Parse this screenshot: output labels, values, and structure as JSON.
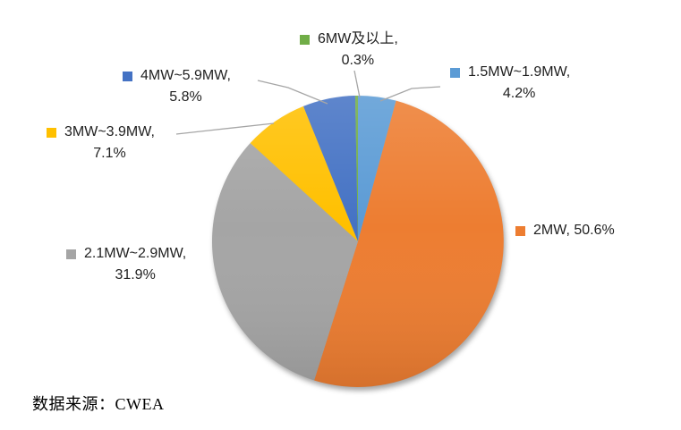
{
  "source_note": "数据来源：CWEA",
  "chart_data": {
    "type": "pie",
    "title": "",
    "start_angle_deg": 0,
    "direction": "clockwise",
    "legend_position": "data-labels-with-keys",
    "leader_line_color": "#A6A6A6",
    "slices": [
      {
        "label": "1.5MW~1.9MW",
        "value": 4.2,
        "color": "#5B9BD5",
        "label_line1": "1.5MW~1.9MW,",
        "label_line2": "4.2%"
      },
      {
        "label": "2MW",
        "value": 50.6,
        "color": "#ED7D31",
        "label_line1": "2MW, 50.6%",
        "label_line2": ""
      },
      {
        "label": "2.1MW~2.9MW",
        "value": 31.9,
        "color": "#A5A5A5",
        "label_line1": "2.1MW~2.9MW,",
        "label_line2": "31.9%"
      },
      {
        "label": "3MW~3.9MW",
        "value": 7.1,
        "color": "#FFC000",
        "label_line1": "3MW~3.9MW,",
        "label_line2": "7.1%"
      },
      {
        "label": "4MW~5.9MW",
        "value": 5.8,
        "color": "#4472C4",
        "label_line1": "4MW~5.9MW,",
        "label_line2": "5.8%"
      },
      {
        "label": "6MW及以上",
        "value": 0.3,
        "color": "#70AD47",
        "label_line1": "6MW及以上,",
        "label_line2": "0.3%"
      }
    ]
  }
}
